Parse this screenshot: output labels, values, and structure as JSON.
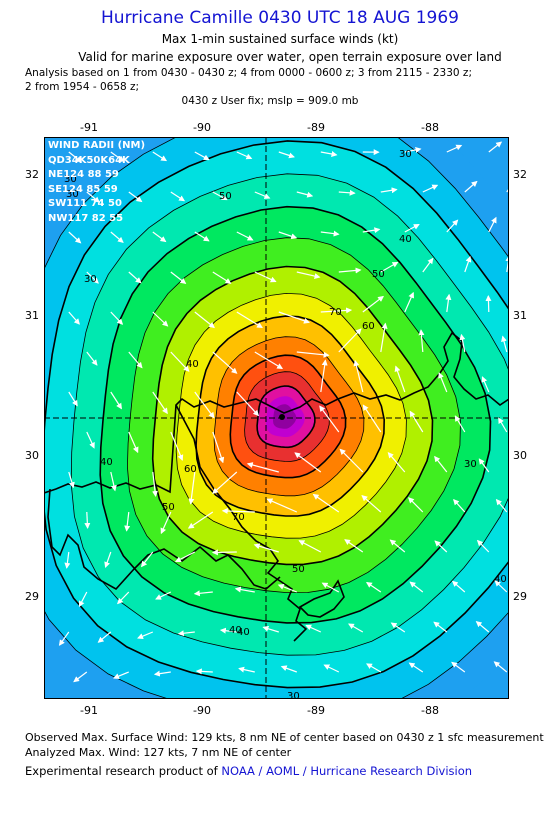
{
  "header": {
    "title": "Hurricane Camille 0430 UTC 18 AUG 1969",
    "subtitle": "Max 1-min sustained surface winds (kt)",
    "valid": "Valid for marine exposure over water, open terrain exposure over land",
    "analysis_line1": "Analysis based on  1 from 0430 - 0430 z;  4 from 0000 - 0600 z;  3 from 2115 - 2330 z;",
    "analysis_line2": "2 from 1954 - 0658 z;",
    "fix": "0430 z User fix; mslp = 909.0 mb"
  },
  "map": {
    "lon_ticks": [
      "-91",
      "-90",
      "-89",
      "-88"
    ],
    "lat_ticks": [
      "32",
      "31",
      "30",
      "29"
    ],
    "center": {
      "lon": -89.3,
      "lat": 30.28
    },
    "contour_labels": [
      "30",
      "40",
      "50",
      "60",
      "70",
      "30",
      "40",
      "50",
      "60",
      "70",
      "40",
      "50",
      "40",
      "30",
      "30",
      "40",
      "50",
      "40",
      "30",
      "30"
    ],
    "colors": {
      "land_outline": "#000000",
      "contour_line": "#000000",
      "vector": "#ffffff",
      "crosshair": "#000000"
    },
    "color_scale": [
      "#1ea0f0",
      "#00c3ee",
      "#00e0e0",
      "#00e8b0",
      "#00e860",
      "#40ee20",
      "#b0f000",
      "#f0f000",
      "#ffc000",
      "#ff8000",
      "#ff5010",
      "#e83030",
      "#e010a0",
      "#c000d0",
      "#9000a0"
    ]
  },
  "wind_radii": {
    "header": "WIND RADII (NM)",
    "col_header": "QD34K50K64K",
    "rows": [
      {
        "quad": "NE",
        "r34": "124",
        "r50": "88",
        "r64": "59"
      },
      {
        "quad": "SE",
        "r34": "124",
        "r50": "85",
        "r64": "59"
      },
      {
        "quad": "SW",
        "r34": "111",
        "r50": "74",
        "r64": "50"
      },
      {
        "quad": "NW",
        "r34": "117",
        "r50": "82",
        "r64": "55"
      }
    ]
  },
  "footer": {
    "observed": "Observed Max. Surface Wind: 129 kts, 8 nm NE of center based on 0430 z 1 sfc measurement",
    "analyzed": "Analyzed Max. Wind: 127 kts, 7 nm NE of center",
    "credit_prefix": "Experimental research product of ",
    "credit_link": "NOAA / AOML / Hurricane Research Division"
  }
}
